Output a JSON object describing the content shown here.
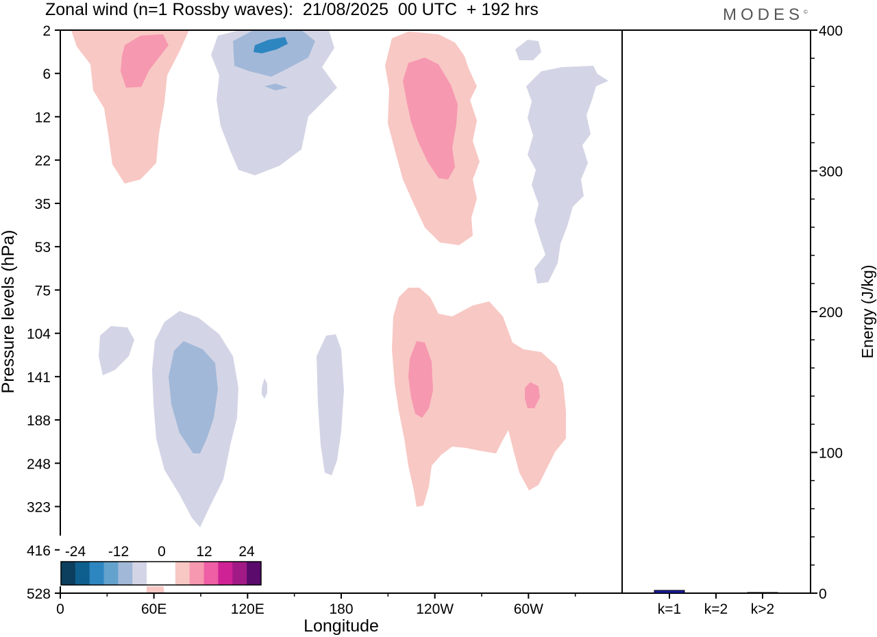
{
  "header": {
    "title": "Zonal wind (n=1 Rossby waves):  21/08/2025  00 UTC  + 192 hrs",
    "brand": "MODES",
    "brand_mark": "©"
  },
  "colors": {
    "neg3": "#2e86c1",
    "neg2": "#a2b8d8",
    "neg1": "#d3d5e6",
    "pos1": "#f8c8c4",
    "pos2": "#f698b0",
    "bar": "#1a1a9e"
  },
  "chart_data": [
    {
      "type": "contour",
      "title": "Zonal wind (n=1 Rossby waves):  21/08/2025  00 UTC  + 192 hrs",
      "xlabel": "Longitude",
      "ylabel": "Pressure levels (hPa)",
      "x_ticks": [
        "0",
        "60E",
        "120E",
        "180",
        "120W",
        "60W"
      ],
      "x_tick_degrees": [
        0,
        60,
        120,
        180,
        240,
        300
      ],
      "xlim": [
        0,
        360
      ],
      "y_ticks": [
        "2",
        "6",
        "12",
        "22",
        "35",
        "53",
        "75",
        "104",
        "141",
        "188",
        "248",
        "323",
        "416",
        "528"
      ],
      "features": [
        {
          "label": "positive stratospheric lobe",
          "sign": "positive",
          "lon": 30,
          "pressure": "2-30 hPa",
          "max_level": "pos2"
        },
        {
          "label": "negative stratospheric lobe",
          "sign": "negative",
          "lon": 135,
          "pressure": "2-25 hPa",
          "max_level": "neg3"
        },
        {
          "label": "positive stratospheric lobe",
          "sign": "positive",
          "lon": 240,
          "pressure": "2-50 hPa",
          "max_level": "pos2"
        },
        {
          "label": "negative stratospheric filament",
          "sign": "negative",
          "lon": 315,
          "pressure": "2-75 hPa",
          "max_level": "neg1"
        },
        {
          "label": "negative tropospheric cell",
          "sign": "negative",
          "lon": 80,
          "pressure": "100-400 hPa",
          "max_level": "neg2"
        },
        {
          "label": "negative tropospheric cell",
          "sign": "negative",
          "lon": 175,
          "pressure": "100-250 hPa",
          "max_level": "neg1"
        },
        {
          "label": "positive tropospheric cell",
          "sign": "positive",
          "lon": 270,
          "pressure": "80-330 hPa",
          "max_level": "pos2"
        }
      ],
      "colorbar": {
        "labels": [
          "-24",
          "-12",
          "0",
          "12",
          "24"
        ],
        "colors": [
          "#0c3f5e",
          "#0f5f8e",
          "#2e86c1",
          "#63a2cc",
          "#a2b8d8",
          "#d3d5e6",
          "#ffffff",
          "#ffffff",
          "#f8c8c4",
          "#f698b0",
          "#ee5fa6",
          "#cf2294",
          "#a21a86",
          "#5a0b6c"
        ]
      }
    },
    {
      "type": "bar",
      "ylabel": "Energy (J/kg)",
      "categories": [
        "k=1",
        "k=2",
        "k>2"
      ],
      "values": [
        2,
        0,
        0.5
      ],
      "ylim": [
        0,
        400
      ],
      "y_ticks": [
        "0",
        "100",
        "200",
        "300",
        "400"
      ]
    }
  ]
}
